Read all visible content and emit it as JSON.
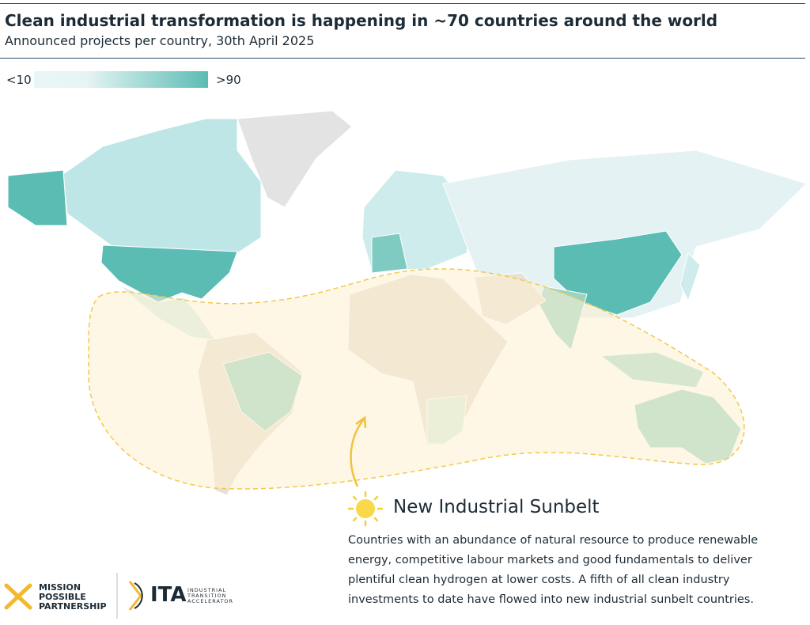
{
  "header": {
    "title": "Clean industrial transformation is happening in ~70 countries around the world",
    "subtitle": "Announced projects per country, 30th April 2025"
  },
  "legend": {
    "min_label": "<10",
    "max_label": ">90"
  },
  "callout": {
    "title": "New Industrial Sunbelt",
    "lines": [
      "Countries with an abundance of natural resource to produce renewable",
      "energy, competitive labour markets and good fundamentals to deliver",
      "plentiful clean hydrogen at lower costs. A fifth of all clean industry",
      "investments to date have flowed into new industrial sunbelt countries."
    ]
  },
  "logos": {
    "mpp": [
      "MISSION",
      "POSSIBLE",
      "PARTNERSHIP"
    ],
    "ita": "ITA",
    "ita_sub": [
      "INDUSTRIAL",
      "TRANSITION",
      "ACCELERATOR"
    ]
  }
}
